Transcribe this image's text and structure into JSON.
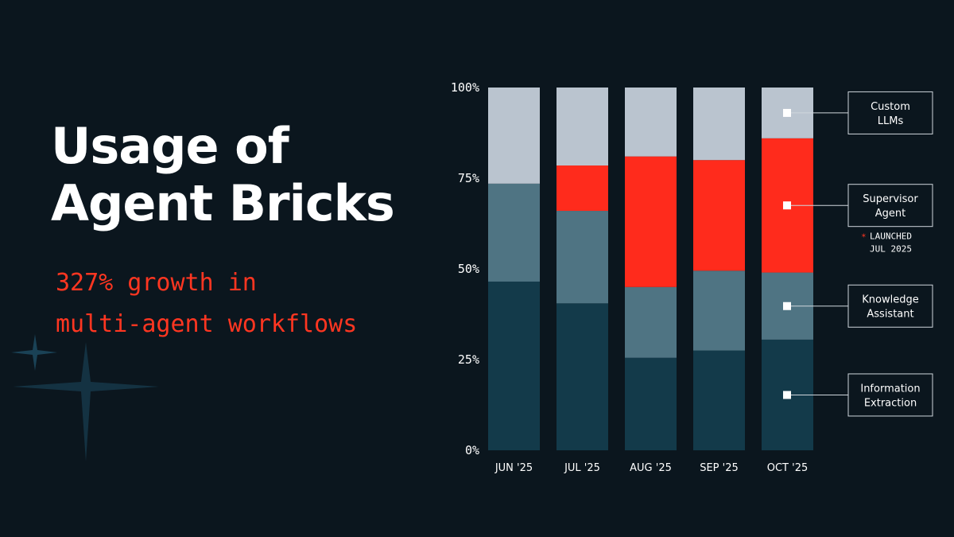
{
  "title_lines": [
    "Usage of",
    "Agent Bricks"
  ],
  "subtitle_lines": [
    "327% growth in",
    "multi-agent workflows"
  ],
  "chart_data": {
    "type": "bar",
    "stacked": true,
    "normalized": true,
    "title": "",
    "xlabel": "",
    "ylabel": "",
    "ylim": [
      0,
      100
    ],
    "yticks": [
      0,
      25,
      50,
      75,
      100
    ],
    "ytick_labels": [
      "0%",
      "25%",
      "50%",
      "75%",
      "100%"
    ],
    "categories": [
      "JUN '25",
      "JUL '25",
      "AUG '25",
      "SEP '25",
      "OCT '25"
    ],
    "series": [
      {
        "name": "Information Extraction",
        "color": "#133a4a",
        "values": [
          46.5,
          40.5,
          25.5,
          27.5,
          30.5
        ]
      },
      {
        "name": "Knowledge Assistant",
        "color": "#4f7483",
        "values": [
          27,
          25.5,
          19.5,
          22,
          18.5
        ]
      },
      {
        "name": "Supervisor Agent",
        "color": "#ff2b1c",
        "values": [
          0,
          12.5,
          36,
          30.5,
          37
        ]
      },
      {
        "name": "Custom LLMs",
        "color": "#bac4cf",
        "values": [
          26.5,
          21.5,
          19,
          20,
          14
        ]
      }
    ],
    "legend": [
      {
        "label_lines": [
          "Custom",
          "LLMs"
        ],
        "series": "Custom LLMs"
      },
      {
        "label_lines": [
          "Supervisor",
          "Agent"
        ],
        "series": "Supervisor Agent"
      },
      {
        "label_lines": [
          "Knowledge",
          "Assistant"
        ],
        "series": "Knowledge Assistant"
      },
      {
        "label_lines": [
          "Information",
          "Extraction"
        ],
        "series": "Information Extraction"
      }
    ],
    "legend_placement": "right",
    "annotation": {
      "symbol": "*",
      "lines": [
        "LAUNCHED",
        "JUL 2025"
      ],
      "series": "Supervisor Agent"
    },
    "grid": false
  }
}
